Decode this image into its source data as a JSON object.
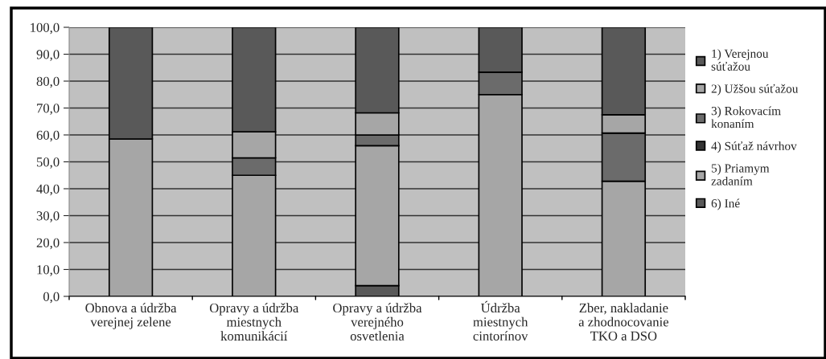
{
  "chart_data": {
    "type": "bar",
    "stacked": true,
    "categories": [
      "Obnova a údržba\nverejnej zelene",
      "Opravy a údržba\nmiestnych\nkomunikácií",
      "Opravy a údržba\nverejného\nosvetlenia",
      "Údržba\nmiestnych\ncintorínov",
      "Zber, nakladanie\na zhodnocovanie\nTKO a DSO"
    ],
    "series": [
      {
        "name": "1) Verejnou\nsúťažou",
        "color": "#595959",
        "values": [
          0,
          0,
          4.0,
          0,
          0
        ]
      },
      {
        "name": "2) Užšou súťažou",
        "color": "#a6a6a6",
        "values": [
          58.5,
          45.0,
          52.0,
          75.0,
          42.8
        ]
      },
      {
        "name": "3) Rokovacím\nkonaním",
        "color": "#6b6b6b",
        "values": [
          0,
          6.5,
          4.0,
          8.3,
          17.9
        ]
      },
      {
        "name": "4) Súťaž návrhov",
        "color": "#333333",
        "values": [
          0,
          0,
          0,
          0,
          0
        ]
      },
      {
        "name": "5) Priamym\nzadaním",
        "color": "#a6a6a6",
        "values": [
          0,
          9.7,
          8.2,
          0,
          6.8
        ]
      },
      {
        "name": "6) Iné",
        "color": "#595959",
        "values": [
          41.5,
          38.8,
          31.8,
          16.7,
          32.5
        ]
      }
    ],
    "ylim": [
      0,
      100
    ],
    "yticks": [
      {
        "value": 0,
        "label": "0,0"
      },
      {
        "value": 10,
        "label": "10,0"
      },
      {
        "value": 20,
        "label": "20,0"
      },
      {
        "value": 30,
        "label": "30,0"
      },
      {
        "value": 40,
        "label": "40,0"
      },
      {
        "value": 50,
        "label": "50,0"
      },
      {
        "value": 60,
        "label": "60,0"
      },
      {
        "value": 70,
        "label": "70,0"
      },
      {
        "value": 80,
        "label": "80,0"
      },
      {
        "value": 90,
        "label": "90,0"
      },
      {
        "value": 100,
        "label": "100,0"
      }
    ],
    "grid": "y",
    "legend": "right"
  }
}
